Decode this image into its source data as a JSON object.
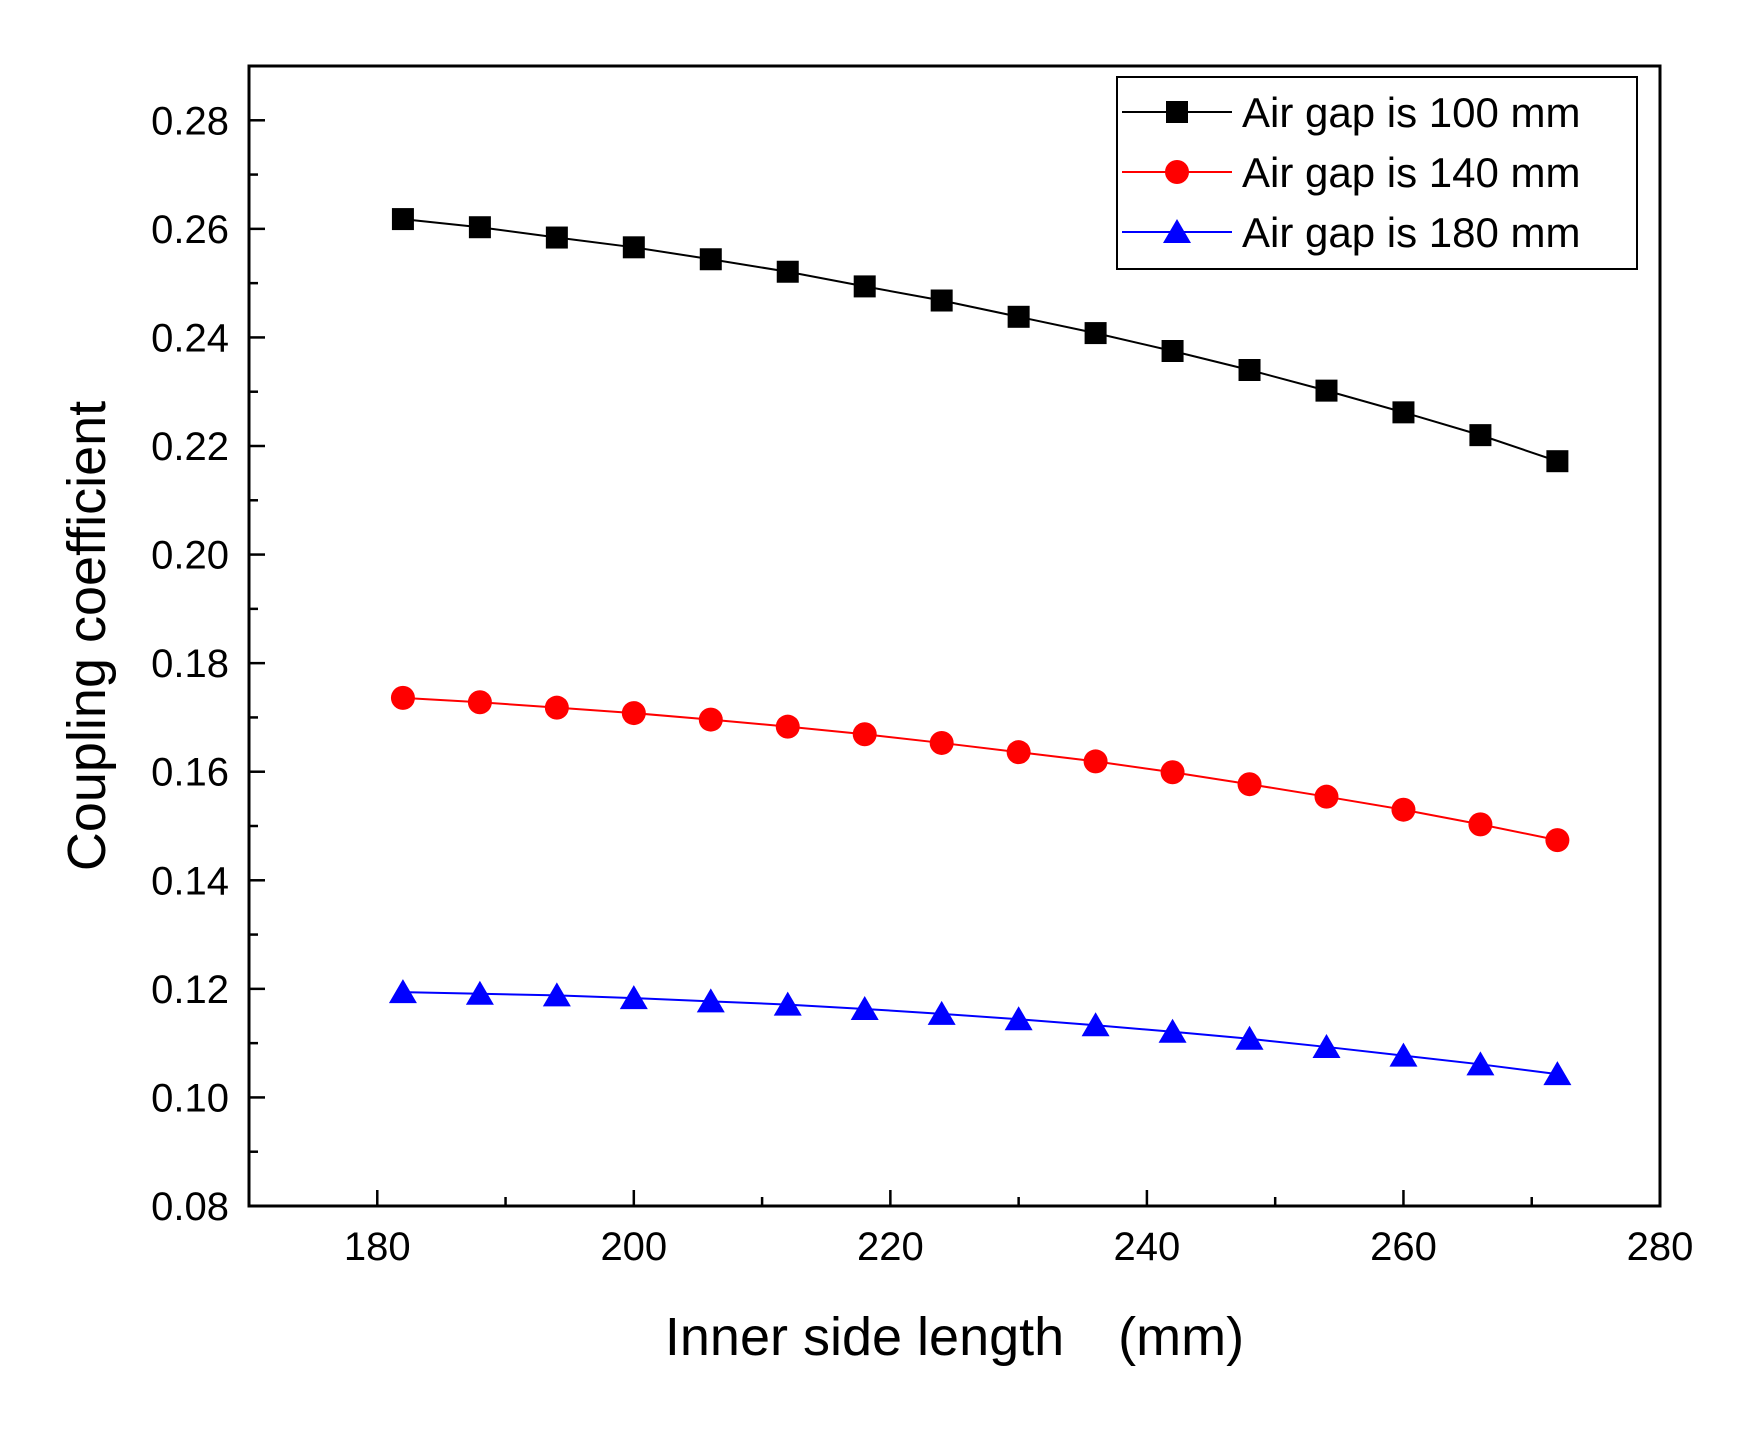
{
  "chart_data": {
    "type": "line",
    "title": "",
    "xlabel": "Inner side length　(mm)",
    "ylabel": "Coupling coefficient",
    "xlim": [
      170,
      280
    ],
    "ylim": [
      0.08,
      0.29
    ],
    "x_ticks": [
      180,
      200,
      220,
      240,
      260,
      280
    ],
    "x_tick_labels": [
      "180",
      "200",
      "220",
      "240",
      "260",
      "280"
    ],
    "y_ticks": [
      0.08,
      0.1,
      0.12,
      0.14,
      0.16,
      0.18,
      0.2,
      0.22,
      0.24,
      0.26,
      0.28
    ],
    "y_tick_labels": [
      "0.08",
      "0.10",
      "0.12",
      "0.14",
      "0.16",
      "0.18",
      "0.20",
      "0.22",
      "0.24",
      "0.26",
      "0.28"
    ],
    "grid": false,
    "legend_position": "top-right",
    "x": [
      182,
      188,
      194,
      200,
      206,
      212,
      218,
      224,
      230,
      236,
      242,
      248,
      254,
      260,
      266,
      272
    ],
    "series": [
      {
        "name": "Air gap is 100 mm",
        "color": "#000000",
        "marker": "square",
        "values": [
          0.2618,
          0.2603,
          0.2584,
          0.2566,
          0.2544,
          0.2521,
          0.2494,
          0.2468,
          0.2438,
          0.2408,
          0.2375,
          0.234,
          0.2302,
          0.2262,
          0.222,
          0.2172
        ]
      },
      {
        "name": "Air gap is 140 mm",
        "color": "#ff0000",
        "marker": "circle",
        "values": [
          0.1736,
          0.1728,
          0.1718,
          0.1708,
          0.1696,
          0.1683,
          0.1669,
          0.1653,
          0.1636,
          0.1619,
          0.1599,
          0.1577,
          0.1554,
          0.153,
          0.1503,
          0.1474
        ]
      },
      {
        "name": "Air gap is 180 mm",
        "color": "#0000ff",
        "marker": "triangle",
        "values": [
          0.1194,
          0.1191,
          0.1188,
          0.1183,
          0.1177,
          0.1171,
          0.1163,
          0.1154,
          0.1144,
          0.1133,
          0.1121,
          0.1108,
          0.1093,
          0.1077,
          0.1061,
          0.1043
        ]
      }
    ]
  }
}
